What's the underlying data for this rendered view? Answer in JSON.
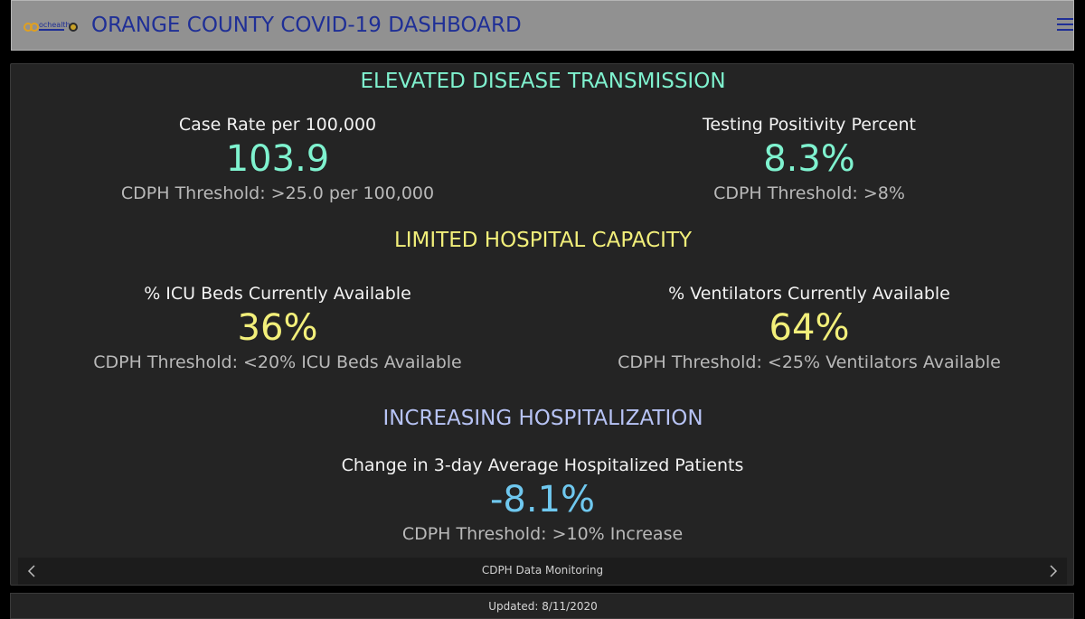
{
  "header": {
    "logo_text": "ochealth",
    "title": "ORANGE COUNTY COVID-19 DASHBOARD",
    "menu_icon": "hamburger-menu-icon"
  },
  "colors": {
    "teal": "#7ff2cf",
    "yellow": "#f2ef7a",
    "periwinkle": "#b7c3f5",
    "blue": "#6fc8ef",
    "header_title": "#1f2f96"
  },
  "sections": {
    "transmission": {
      "title": "ELEVATED DISEASE TRANSMISSION",
      "case_rate": {
        "label": "Case Rate per 100,000",
        "value": "103.9",
        "threshold": "CDPH Threshold: >25.0 per 100,000"
      },
      "positivity": {
        "label": "Testing Positivity Percent",
        "value": "8.3%",
        "threshold": "CDPH Threshold: >8%"
      }
    },
    "capacity": {
      "title": "LIMITED HOSPITAL CAPACITY",
      "icu": {
        "label": "% ICU Beds Currently Available",
        "value": "36%",
        "threshold": "CDPH Threshold: <20% ICU Beds Available"
      },
      "ventilators": {
        "label": "% Ventilators Currently Available",
        "value": "64%",
        "threshold": "CDPH Threshold: <25% Ventilators Available"
      }
    },
    "hospitalization": {
      "title": "INCREASING HOSPITALIZATION",
      "change": {
        "label": "Change in 3-day Average Hospitalized Patients",
        "value": "-8.1%",
        "threshold": "CDPH Threshold: >10% Increase"
      }
    }
  },
  "nav": {
    "label": "CDPH Data Monitoring",
    "prev_icon": "chevron-left-icon",
    "next_icon": "chevron-right-icon"
  },
  "footer": {
    "updated": "Updated: 8/11/2020"
  }
}
